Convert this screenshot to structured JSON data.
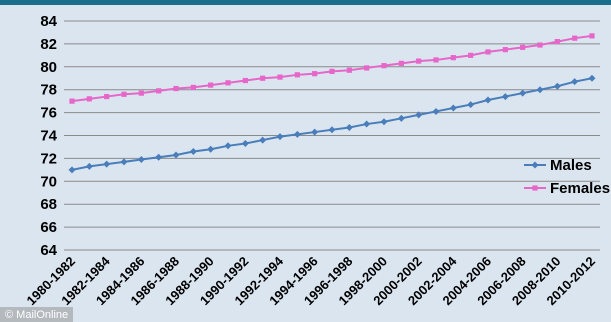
{
  "chart_data": {
    "type": "line",
    "title": "",
    "xlabel": "",
    "ylabel": "",
    "ylim": [
      64,
      84
    ],
    "y_ticks": [
      64,
      66,
      68,
      70,
      72,
      74,
      76,
      78,
      80,
      82,
      84
    ],
    "grid": true,
    "legend_position": "right",
    "categories": [
      "1980-1982",
      "1981-1983",
      "1982-1984",
      "1983-1985",
      "1984-1986",
      "1985-1987",
      "1986-1988",
      "1987-1989",
      "1988-1990",
      "1989-1991",
      "1990-1992",
      "1991-1993",
      "1992-1994",
      "1993-1995",
      "1994-1996",
      "1995-1997",
      "1996-1998",
      "1997-1999",
      "1998-2000",
      "1999-2001",
      "2000-2002",
      "2001-2003",
      "2002-2004",
      "2003-2005",
      "2004-2006",
      "2005-2007",
      "2006-2008",
      "2007-2009",
      "2008-2010",
      "2009-2011",
      "2010-2012"
    ],
    "tick_labels": [
      "1980-1982",
      "1982-1984",
      "1984-1986",
      "1986-1988",
      "1988-1990",
      "1990-1992",
      "1992-1994",
      "1994-1996",
      "1996-1998",
      "1998-2000",
      "2000-2002",
      "2002-2004",
      "2004-2006",
      "2006-2008",
      "2008-2010",
      "2010-2012"
    ],
    "series": [
      {
        "name": "Males",
        "color": "#4a7ebb",
        "marker": "diamond",
        "values": [
          71.0,
          71.3,
          71.5,
          71.7,
          71.9,
          72.1,
          72.3,
          72.6,
          72.8,
          73.1,
          73.3,
          73.6,
          73.9,
          74.1,
          74.3,
          74.5,
          74.7,
          75.0,
          75.2,
          75.5,
          75.8,
          76.1,
          76.4,
          76.7,
          77.1,
          77.4,
          77.7,
          78.0,
          78.3,
          78.7,
          79.0
        ]
      },
      {
        "name": "Females",
        "color": "#e667c9",
        "marker": "square",
        "values": [
          77.0,
          77.2,
          77.4,
          77.6,
          77.7,
          77.9,
          78.1,
          78.2,
          78.4,
          78.6,
          78.8,
          79.0,
          79.1,
          79.3,
          79.4,
          79.6,
          79.7,
          79.9,
          80.1,
          80.3,
          80.5,
          80.6,
          80.8,
          81.0,
          81.3,
          81.5,
          81.7,
          81.9,
          82.2,
          82.5,
          82.7
        ]
      }
    ]
  },
  "watermark": "© MailOnline",
  "colors": {
    "background": "#dae5f0",
    "gridline": "#8a8a8a",
    "top_band": "#1a6f8a"
  }
}
